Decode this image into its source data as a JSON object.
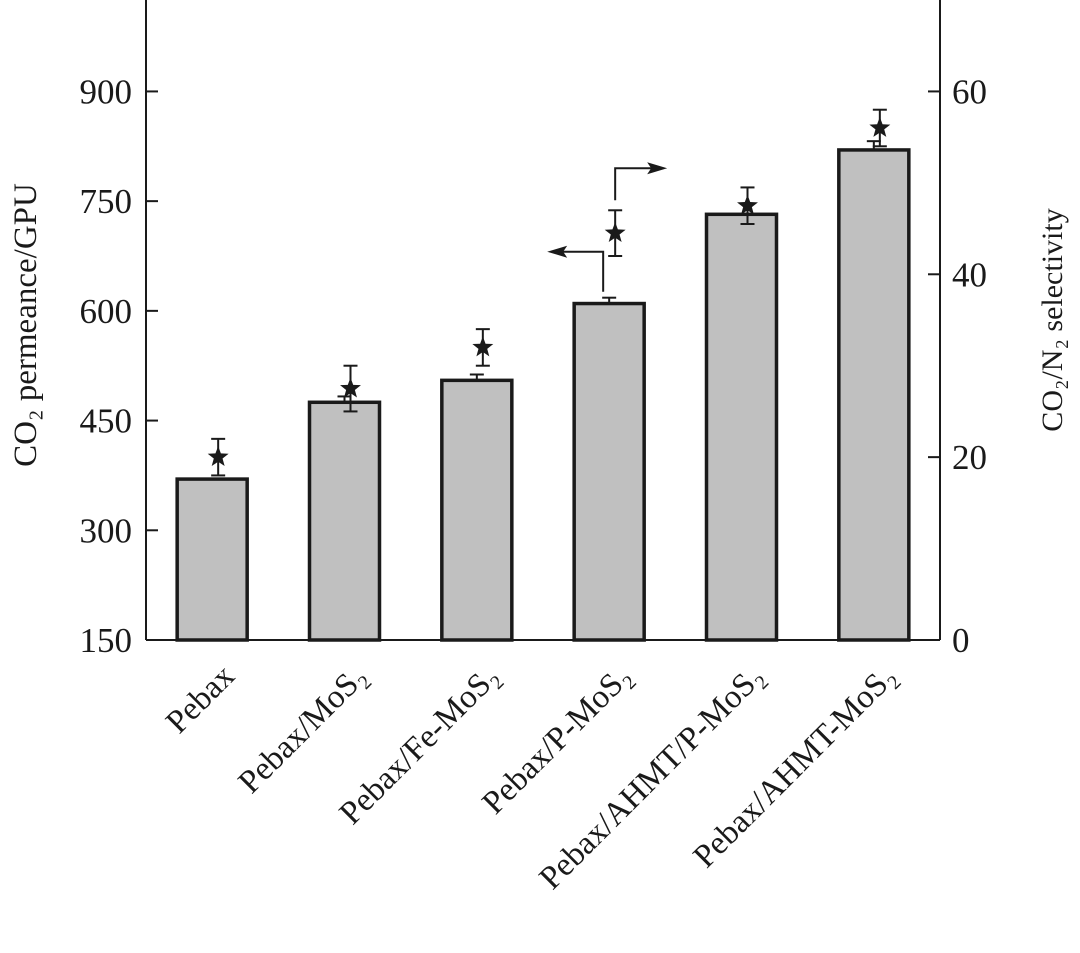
{
  "chart_data": {
    "type": "bar",
    "categories": [
      "Pebax",
      "Pebax/MoS₂",
      "Pebax/Fe-MoS₂",
      "Pebax/P-MoS₂",
      "Pebax/AHMT/P-MoS₂",
      "Pebax/AHMT-MoS₂"
    ],
    "left_axis": {
      "label": "CO₂ permeance/GPU",
      "ylim": [
        150,
        1025
      ],
      "ticks": [
        150,
        300,
        450,
        600,
        750,
        900
      ]
    },
    "right_axis": {
      "label": "CO₂/N₂ selectivity",
      "ylim": [
        0,
        70
      ],
      "ticks": [
        0,
        20,
        40,
        60
      ]
    },
    "series": [
      {
        "axis": "left",
        "style": "bar",
        "color": "#c0c0c0",
        "values": [
          370,
          475,
          505,
          610,
          732,
          820
        ],
        "errors": [
          0,
          8,
          8,
          8,
          0,
          12
        ]
      },
      {
        "axis": "right",
        "style": "star-marker",
        "color": "#1a1a1a",
        "values": [
          20,
          27.5,
          32,
          44.5,
          47.5,
          56
        ],
        "errors": [
          2,
          2.5,
          2,
          2.5,
          2,
          2
        ]
      }
    ],
    "annotations": [
      {
        "type": "arrow",
        "points_to": "left-axis",
        "series": "bar"
      },
      {
        "type": "arrow",
        "points_to": "right-axis",
        "series": "star-marker"
      }
    ],
    "grid": false
  }
}
